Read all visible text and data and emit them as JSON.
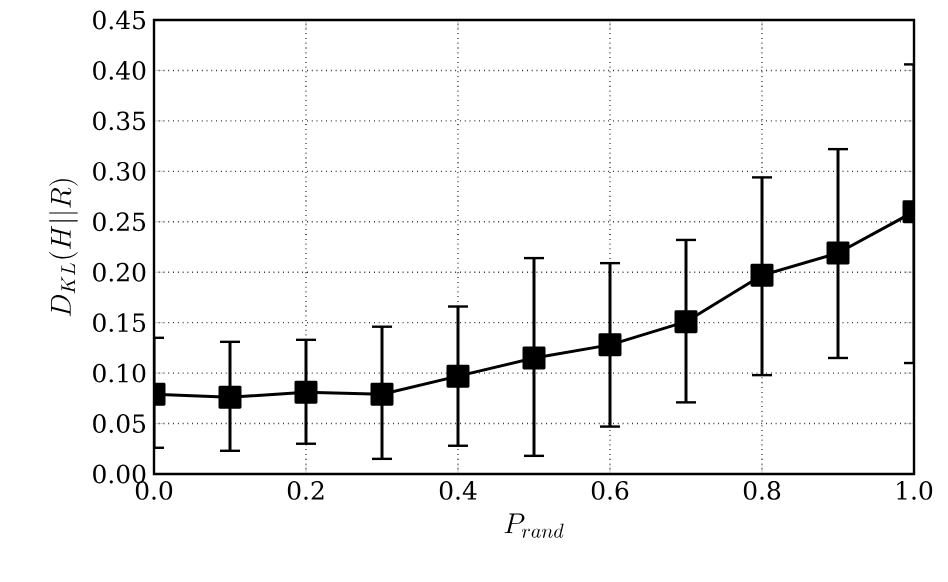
{
  "chart_data": {
    "type": "line",
    "xlabel": "P_{rand}",
    "ylabel": "D_{KL}(H||R)",
    "x": [
      0.0,
      0.1,
      0.2,
      0.3,
      0.4,
      0.5,
      0.6,
      0.7,
      0.8,
      0.9,
      1.0
    ],
    "series": [
      {
        "color": "#000000",
        "values": [
          0.079,
          0.076,
          0.081,
          0.079,
          0.097,
          0.115,
          0.128,
          0.151,
          0.197,
          0.219,
          0.26
        ],
        "errors": [
          [
            0.026,
            0.135
          ],
          [
            0.023,
            0.131
          ],
          [
            0.03,
            0.133
          ],
          [
            0.015,
            0.146
          ],
          [
            0.028,
            0.166
          ],
          [
            0.018,
            0.214
          ],
          [
            0.047,
            0.209
          ],
          [
            0.071,
            0.232
          ],
          [
            0.098,
            0.294
          ],
          [
            0.115,
            0.322
          ],
          [
            0.11,
            0.406
          ]
        ]
      }
    ],
    "xlim": [
      0.0,
      1.0
    ],
    "ylim": [
      0.0,
      0.45
    ],
    "xticks": [
      {
        "value": 0.0,
        "label": "0.0"
      },
      {
        "value": 0.2,
        "label": "0.2"
      },
      {
        "value": 0.4,
        "label": "0.4"
      },
      {
        "value": 0.6,
        "label": "0.6"
      },
      {
        "value": 0.8,
        "label": "0.8"
      },
      {
        "value": 1.0,
        "label": "1.0"
      }
    ],
    "yticks": [
      {
        "value": 0.0,
        "label": "0.00"
      },
      {
        "value": 0.05,
        "label": "0.05"
      },
      {
        "value": 0.1,
        "label": "0.10"
      },
      {
        "value": 0.15,
        "label": "0.15"
      },
      {
        "value": 0.2,
        "label": "0.20"
      },
      {
        "value": 0.25,
        "label": "0.25"
      },
      {
        "value": 0.3,
        "label": "0.30"
      },
      {
        "value": 0.35,
        "label": "0.35"
      },
      {
        "value": 0.4,
        "label": "0.40"
      },
      {
        "value": 0.45,
        "label": "0.45"
      }
    ],
    "grid": true,
    "marker": "square",
    "line_style": "solid"
  }
}
